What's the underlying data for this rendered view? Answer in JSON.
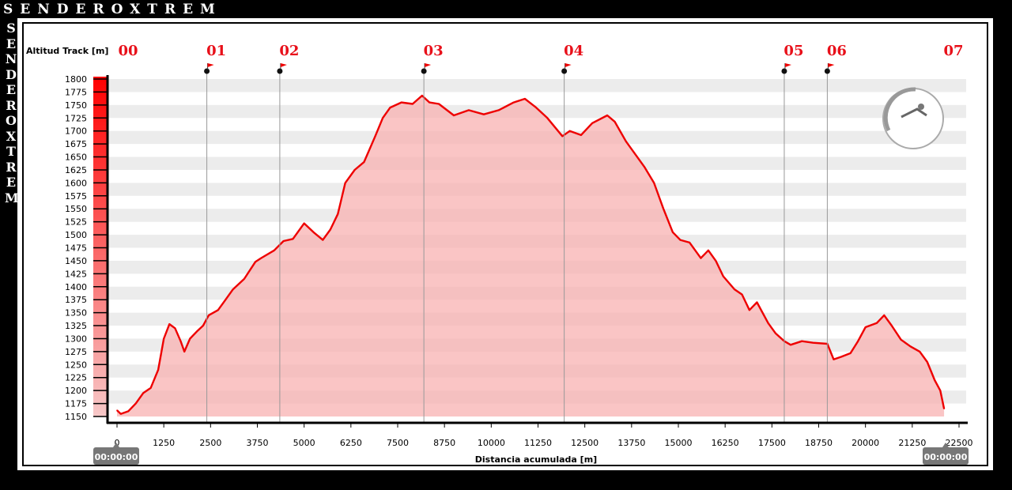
{
  "brand": "SENDEROXTREM",
  "chart_data": {
    "type": "area",
    "ylabel": "Altitud Track [m]",
    "xlabel": "Distancia acumulada [m]",
    "ylim": [
      1150,
      1800
    ],
    "xlim": [
      0,
      22500
    ],
    "yticks": [
      1150,
      1175,
      1200,
      1225,
      1250,
      1275,
      1300,
      1325,
      1350,
      1375,
      1400,
      1425,
      1450,
      1475,
      1500,
      1525,
      1550,
      1575,
      1600,
      1625,
      1650,
      1675,
      1700,
      1725,
      1750,
      1775,
      1800
    ],
    "xticks": [
      0,
      1250,
      2500,
      3750,
      5000,
      6250,
      7500,
      8750,
      10000,
      11250,
      12500,
      13750,
      15000,
      16250,
      17500,
      18750,
      20000,
      21250,
      22500
    ],
    "time_start": "00:00:00",
    "time_end": "00:00:00",
    "waypoints": [
      {
        "label": "00",
        "x": 0
      },
      {
        "label": "01",
        "x": 2400
      },
      {
        "label": "02",
        "x": 4350
      },
      {
        "label": "03",
        "x": 8200
      },
      {
        "label": "04",
        "x": 11950
      },
      {
        "label": "05",
        "x": 17830
      },
      {
        "label": "06",
        "x": 18980
      },
      {
        "label": "07",
        "x": 22100
      }
    ],
    "series": [
      {
        "x": [
          0,
          100,
          300,
          500,
          700,
          900,
          1100,
          1250,
          1400,
          1550,
          1700,
          1800,
          1950,
          2150,
          2300,
          2450,
          2700,
          2900,
          3100,
          3400,
          3700,
          3850,
          4200,
          4450,
          4700,
          5000,
          5250,
          5500,
          5700,
          5900,
          6100,
          6350,
          6600,
          6900,
          7100,
          7300,
          7600,
          7900,
          8150,
          8350,
          8600,
          9000,
          9400,
          9800,
          10200,
          10600,
          10900,
          11200,
          11500,
          11900,
          12100,
          12400,
          12700,
          13100,
          13300,
          13600,
          13850,
          14100,
          14350,
          14600,
          14850,
          15050,
          15300,
          15600,
          15800,
          16000,
          16200,
          16500,
          16700,
          16900,
          17100,
          17400,
          17600,
          17830,
          18000,
          18300,
          18600,
          18980,
          19150,
          19350,
          19600,
          19800,
          20000,
          20300,
          20500,
          20700,
          20950,
          21200,
          21450,
          21650,
          21850,
          22000,
          22100
        ],
        "y": [
          1162,
          1155,
          1160,
          1175,
          1195,
          1205,
          1240,
          1300,
          1328,
          1320,
          1295,
          1275,
          1300,
          1315,
          1325,
          1345,
          1355,
          1375,
          1395,
          1415,
          1448,
          1455,
          1470,
          1488,
          1492,
          1522,
          1505,
          1490,
          1510,
          1540,
          1600,
          1625,
          1640,
          1690,
          1725,
          1745,
          1755,
          1752,
          1768,
          1755,
          1752,
          1730,
          1740,
          1732,
          1740,
          1755,
          1762,
          1745,
          1725,
          1690,
          1700,
          1692,
          1715,
          1730,
          1718,
          1680,
          1655,
          1630,
          1600,
          1550,
          1505,
          1490,
          1485,
          1455,
          1470,
          1450,
          1420,
          1395,
          1385,
          1355,
          1370,
          1330,
          1310,
          1295,
          1288,
          1295,
          1292,
          1290,
          1260,
          1265,
          1272,
          1295,
          1322,
          1330,
          1345,
          1325,
          1298,
          1285,
          1275,
          1255,
          1220,
          1200,
          1165
        ]
      }
    ]
  }
}
